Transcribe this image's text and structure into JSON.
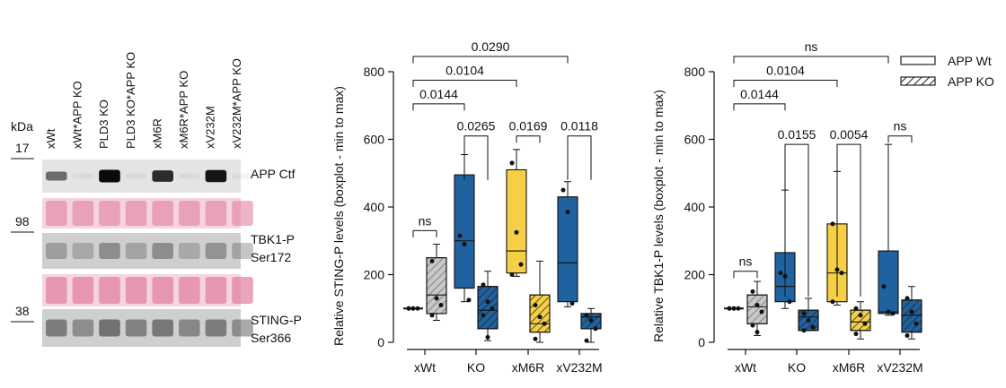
{
  "blot": {
    "kda_label": "kDa",
    "lanes": [
      "xWt",
      "xWt*APP KO",
      "PLD3 KO",
      "PLD3 KO*APP KO",
      "xM6R",
      "xM6R*APP KO",
      "xV232M",
      "xV232M*APP KO"
    ],
    "markers": [
      "17",
      "98",
      "38"
    ],
    "rows": [
      {
        "label": "APP Ctf",
        "type": "dark",
        "intensity": [
          0.55,
          0.05,
          1.0,
          0.05,
          0.85,
          0.05,
          0.95,
          0.05
        ]
      },
      {
        "label": "",
        "type": "ponceau",
        "intensity": [
          0.7,
          0.7,
          0.7,
          0.7,
          0.7,
          0.7,
          0.7,
          0.7
        ]
      },
      {
        "label": "TBK1-P\nSer172",
        "type": "grey",
        "intensity": [
          0.45,
          0.35,
          0.6,
          0.4,
          0.6,
          0.35,
          0.55,
          0.4
        ]
      },
      {
        "label": "",
        "type": "ponceau",
        "intensity": [
          0.85,
          0.85,
          0.85,
          0.85,
          0.85,
          0.85,
          0.85,
          0.85
        ]
      },
      {
        "label": "STING-P\nSer366",
        "type": "grey",
        "intensity": [
          0.75,
          0.6,
          0.85,
          0.7,
          0.8,
          0.65,
          0.75,
          0.6
        ]
      }
    ]
  },
  "legend": [
    {
      "label": "APP Wt",
      "pattern": "solid"
    },
    {
      "label": "APP KO",
      "pattern": "hatched"
    }
  ],
  "colors": {
    "xWt": "#c8c8c8",
    "KO": "#2062a0",
    "xM6R": "#f5cf45",
    "xV232M": "#2062a0",
    "wt_base_empty": "#ffffff"
  },
  "chart_data": [
    {
      "type": "box",
      "ylabel": "Relative STING-P levels (boxplot - min to max)",
      "ylim": [
        0,
        800
      ],
      "yticks": [
        0,
        200,
        400,
        600,
        800
      ],
      "categories": [
        "xWt",
        "KO",
        "xM6R",
        "xV232M"
      ],
      "series": [
        {
          "name": "APP Wt",
          "boxes": [
            {
              "min": 100,
              "q1": 100,
              "median": 100,
              "q3": 100,
              "max": 100,
              "points": [
                100,
                100,
                100,
                100,
                100
              ]
            },
            {
              "min": 120,
              "q1": 160,
              "median": 300,
              "q3": 495,
              "max": 555,
              "points": [
                315,
                290,
                125
              ]
            },
            {
              "min": 195,
              "q1": 205,
              "median": 270,
              "q3": 510,
              "max": 570,
              "points": [
                530,
                325,
                230,
                200
              ]
            },
            {
              "min": 105,
              "q1": 120,
              "median": 235,
              "q3": 430,
              "max": 475,
              "points": [
                450,
                385,
                115
              ]
            }
          ]
        },
        {
          "name": "APP KO",
          "boxes": [
            {
              "min": 65,
              "q1": 85,
              "median": 140,
              "q3": 250,
              "max": 290,
              "points": [
                240,
                130,
                110,
                80
              ]
            },
            {
              "min": 5,
              "q1": 40,
              "median": 95,
              "q3": 165,
              "max": 210,
              "points": [
                170,
                120,
                100,
                80,
                15
              ]
            },
            {
              "min": 0,
              "q1": 30,
              "median": 55,
              "q3": 140,
              "max": 240,
              "points": [
                110,
                75,
                55,
                10
              ]
            },
            {
              "min": 0,
              "q1": 40,
              "median": 75,
              "q3": 85,
              "max": 100,
              "points": [
                80,
                65,
                40,
                5
              ]
            }
          ]
        }
      ],
      "annotations": [
        {
          "text": "0.0290",
          "from": [
            0,
            0
          ],
          "to": [
            3,
            0
          ],
          "y": 845
        },
        {
          "text": "0.0104",
          "from": [
            0,
            0
          ],
          "to": [
            2,
            0
          ],
          "y": 775
        },
        {
          "text": "0.0144",
          "from": [
            0,
            0
          ],
          "to": [
            1,
            0
          ],
          "y": 705
        },
        {
          "text": "ns",
          "from": [
            0,
            0
          ],
          "to": [
            0,
            1
          ],
          "y": 330,
          "drop": 20
        },
        {
          "text": "0.0265",
          "from": [
            1,
            0
          ],
          "to": [
            1,
            1
          ],
          "y": 610,
          "drop": 130
        },
        {
          "text": "0.0169",
          "from": [
            2,
            0
          ],
          "to": [
            2,
            1
          ],
          "y": 610,
          "drop": 20
        },
        {
          "text": "0.0118",
          "from": [
            3,
            0
          ],
          "to": [
            3,
            1
          ],
          "y": 610,
          "drop": 130
        }
      ]
    },
    {
      "type": "box",
      "ylabel": "Relative TBK1-P levels (boxplot - min to max)",
      "ylim": [
        0,
        800
      ],
      "yticks": [
        0,
        200,
        400,
        600,
        800
      ],
      "categories": [
        "xWt",
        "KO",
        "xM6R",
        "xV232M"
      ],
      "series": [
        {
          "name": "APP Wt",
          "boxes": [
            {
              "min": 100,
              "q1": 100,
              "median": 100,
              "q3": 100,
              "max": 100,
              "points": [
                100,
                100,
                100,
                100,
                100
              ]
            },
            {
              "min": 100,
              "q1": 120,
              "median": 165,
              "q3": 265,
              "max": 450,
              "points": [
                205,
                195,
                120
              ]
            },
            {
              "min": 110,
              "q1": 120,
              "median": 205,
              "q3": 350,
              "max": 505,
              "points": [
                350,
                215,
                205,
                120
              ]
            },
            {
              "min": 80,
              "q1": 85,
              "median": 90,
              "q3": 270,
              "max": 585,
              "points": [
                165,
                90,
                85
              ]
            }
          ]
        },
        {
          "name": "APP KO",
          "boxes": [
            {
              "min": 20,
              "q1": 55,
              "median": 105,
              "q3": 140,
              "max": 180,
              "points": [
                150,
                110,
                90,
                50,
                30
              ]
            },
            {
              "min": 35,
              "q1": 35,
              "median": 75,
              "q3": 95,
              "max": 130,
              "points": [
                85,
                65,
                45,
                35
              ]
            },
            {
              "min": 10,
              "q1": 35,
              "median": 60,
              "q3": 95,
              "max": 120,
              "points": [
                100,
                80,
                55,
                25
              ]
            },
            {
              "min": 10,
              "q1": 30,
              "median": 80,
              "q3": 125,
              "max": 165,
              "points": [
                130,
                90,
                55,
                20
              ]
            }
          ]
        }
      ],
      "annotations": [
        {
          "text": "ns",
          "from": [
            0,
            0
          ],
          "to": [
            3,
            0
          ],
          "y": 845
        },
        {
          "text": "0.0104",
          "from": [
            0,
            0
          ],
          "to": [
            2,
            0
          ],
          "y": 775
        },
        {
          "text": "0.0144",
          "from": [
            0,
            0
          ],
          "to": [
            1,
            0
          ],
          "y": 705
        },
        {
          "text": "ns",
          "from": [
            0,
            0
          ],
          "to": [
            0,
            1
          ],
          "y": 210,
          "drop": 20
        },
        {
          "text": "0.0155",
          "from": [
            1,
            0
          ],
          "to": [
            1,
            1
          ],
          "y": 585,
          "drop": 450
        },
        {
          "text": "0.0054",
          "from": [
            2,
            0
          ],
          "to": [
            2,
            1
          ],
          "y": 585,
          "drop": 450
        },
        {
          "text": "ns",
          "from": [
            3,
            0
          ],
          "to": [
            3,
            1
          ],
          "y": 610,
          "drop": 20
        }
      ]
    }
  ]
}
